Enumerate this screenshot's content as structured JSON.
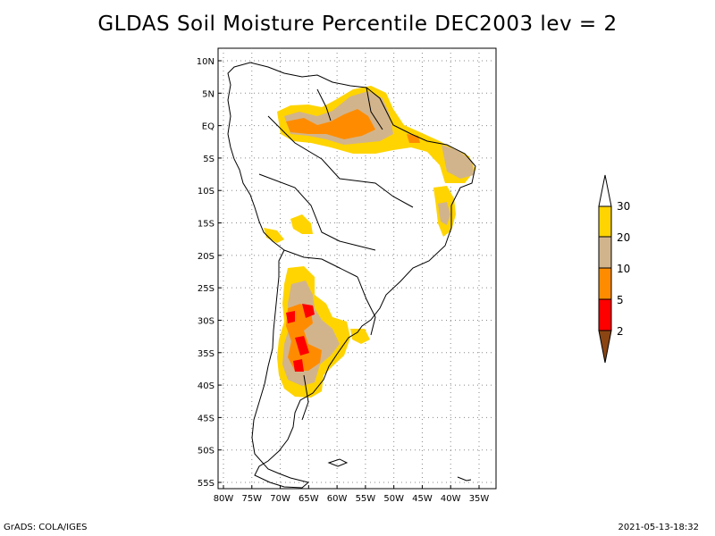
{
  "title": "GLDAS Soil Moisture Percentile DEC2003 lev = 2",
  "footer_left": "GrADS: COLA/IGES",
  "footer_right": "2021-05-13-18:32",
  "map": {
    "lon_range": [
      -81,
      -33
    ],
    "lat_range": [
      -56,
      11
    ],
    "lat_ticks": [
      "10N",
      "5N",
      "EQ",
      "5S",
      "10S",
      "15S",
      "20S",
      "25S",
      "30S",
      "35S",
      "40S",
      "45S",
      "50S",
      "55S"
    ],
    "lat_tick_values": [
      10,
      5,
      0,
      -5,
      -10,
      -15,
      -20,
      -25,
      -30,
      -35,
      -40,
      -45,
      -50,
      -55
    ],
    "lon_ticks": [
      "80W",
      "75W",
      "70W",
      "65W",
      "60W",
      "55W",
      "50W",
      "45W",
      "40W",
      "35W"
    ],
    "lon_tick_values": [
      -80,
      -75,
      -70,
      -65,
      -60,
      -55,
      -50,
      -45,
      -40,
      -35
    ],
    "grid": true
  },
  "colorbar": {
    "labels": [
      "30",
      "20",
      "10",
      "5",
      "2"
    ],
    "colors": [
      "#ffffff",
      "#ffd400",
      "#d2b48c",
      "#ff8c00",
      "#ff0000",
      "#8b4513"
    ]
  }
}
